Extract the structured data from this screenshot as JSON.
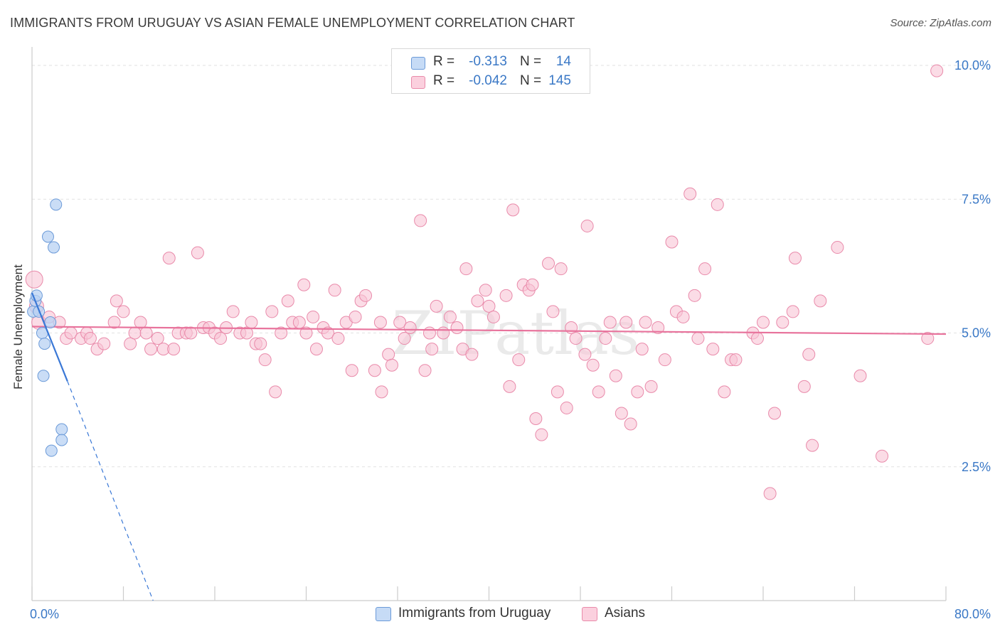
{
  "header": {
    "title": "IMMIGRANTS FROM URUGUAY VS ASIAN FEMALE UNEMPLOYMENT CORRELATION CHART",
    "source": "Source: ZipAtlas.com"
  },
  "watermark": "ZIPatlas",
  "legend": {
    "rows": [
      {
        "r_label": "R =",
        "r_value": "-0.313",
        "n_label": "N =",
        "n_value": "14",
        "color": "#a9c8f0"
      },
      {
        "r_label": "R =",
        "r_value": "-0.042",
        "n_label": "N =",
        "n_value": "145",
        "color": "#f7b6cc"
      }
    ]
  },
  "colors": {
    "blue_fill": "#b8d2f3",
    "blue_stroke": "#6b9ad8",
    "blue_line": "#3a78d6",
    "pink_fill": "#f8c4d6",
    "pink_stroke": "#e98aaa",
    "pink_line": "#e8739c",
    "axis_text": "#3a78c6",
    "grid": "#e2e2e2"
  },
  "chart_data": {
    "type": "scatter",
    "ylabel": "Female Unemployment",
    "xlim": [
      0,
      80
    ],
    "ylim": [
      0,
      10.2
    ],
    "x_tick_labels": [
      {
        "v": 0,
        "label": "0.0%"
      },
      {
        "v": 80,
        "label": "80.0%"
      }
    ],
    "y_tick_labels": [
      {
        "v": 2.5,
        "label": "2.5%"
      },
      {
        "v": 5.0,
        "label": "5.0%"
      },
      {
        "v": 7.5,
        "label": "7.5%"
      },
      {
        "v": 10.0,
        "label": "10.0%"
      }
    ],
    "grid": true,
    "legend_position": "top-center and bottom",
    "series": [
      {
        "name": "Immigrants from Uruguay",
        "color": "#a9c8f0",
        "points": [
          [
            0.1,
            5.4
          ],
          [
            0.3,
            5.6
          ],
          [
            0.4,
            5.7
          ],
          [
            0.6,
            5.4
          ],
          [
            0.9,
            5.0
          ],
          [
            1.1,
            4.8
          ],
          [
            1.0,
            4.2
          ],
          [
            1.4,
            6.8
          ],
          [
            1.9,
            6.6
          ],
          [
            2.1,
            7.4
          ],
          [
            1.6,
            5.2
          ],
          [
            2.6,
            3.2
          ],
          [
            2.6,
            3.0
          ],
          [
            1.7,
            2.8
          ]
        ],
        "trend": {
          "x0": 0,
          "y0": 5.75,
          "x1": 3.1,
          "y1": 4.1,
          "dash_to_x": 10.6,
          "dash_to_y": 0
        }
      },
      {
        "name": "Asians",
        "color": "#f7b6cc",
        "points": [
          [
            0.2,
            6.0
          ],
          [
            0.4,
            5.5
          ],
          [
            0.6,
            5.2
          ],
          [
            1.5,
            5.3
          ],
          [
            2.4,
            5.2
          ],
          [
            3.0,
            4.9
          ],
          [
            3.4,
            5.0
          ],
          [
            4.3,
            4.9
          ],
          [
            4.8,
            5.0
          ],
          [
            5.1,
            4.9
          ],
          [
            5.7,
            4.7
          ],
          [
            6.3,
            4.8
          ],
          [
            7.2,
            5.2
          ],
          [
            7.4,
            5.6
          ],
          [
            8.0,
            5.4
          ],
          [
            8.6,
            4.8
          ],
          [
            9.0,
            5.0
          ],
          [
            9.5,
            5.2
          ],
          [
            10.0,
            5.0
          ],
          [
            10.4,
            4.7
          ],
          [
            11.0,
            4.9
          ],
          [
            11.5,
            4.7
          ],
          [
            12.0,
            6.4
          ],
          [
            12.4,
            4.7
          ],
          [
            12.8,
            5.0
          ],
          [
            13.5,
            5.0
          ],
          [
            13.9,
            5.0
          ],
          [
            14.5,
            6.5
          ],
          [
            15.0,
            5.1
          ],
          [
            15.5,
            5.1
          ],
          [
            16.0,
            5.0
          ],
          [
            16.5,
            4.9
          ],
          [
            17.0,
            5.1
          ],
          [
            17.6,
            5.4
          ],
          [
            18.2,
            5.0
          ],
          [
            18.8,
            5.0
          ],
          [
            19.2,
            5.2
          ],
          [
            19.6,
            4.8
          ],
          [
            20.0,
            4.8
          ],
          [
            20.4,
            4.5
          ],
          [
            21.0,
            5.4
          ],
          [
            21.3,
            3.9
          ],
          [
            21.8,
            5.0
          ],
          [
            22.4,
            5.6
          ],
          [
            22.8,
            5.2
          ],
          [
            23.4,
            5.2
          ],
          [
            23.8,
            5.9
          ],
          [
            24.0,
            5.0
          ],
          [
            24.6,
            5.3
          ],
          [
            24.9,
            4.7
          ],
          [
            25.5,
            5.1
          ],
          [
            25.9,
            5.0
          ],
          [
            26.5,
            5.8
          ],
          [
            26.8,
            4.9
          ],
          [
            27.5,
            5.2
          ],
          [
            28.0,
            4.3
          ],
          [
            28.3,
            5.3
          ],
          [
            28.8,
            5.6
          ],
          [
            29.2,
            5.7
          ],
          [
            30.0,
            4.3
          ],
          [
            30.5,
            5.2
          ],
          [
            30.6,
            3.9
          ],
          [
            31.2,
            4.6
          ],
          [
            31.5,
            4.4
          ],
          [
            32.2,
            5.2
          ],
          [
            32.6,
            4.9
          ],
          [
            33.1,
            5.1
          ],
          [
            34.0,
            7.1
          ],
          [
            34.4,
            4.3
          ],
          [
            34.8,
            5.0
          ],
          [
            35.0,
            4.7
          ],
          [
            35.4,
            5.5
          ],
          [
            36.0,
            5.0
          ],
          [
            36.6,
            5.3
          ],
          [
            37.2,
            5.1
          ],
          [
            37.7,
            4.7
          ],
          [
            38.0,
            6.2
          ],
          [
            38.5,
            4.6
          ],
          [
            39.0,
            5.6
          ],
          [
            40.0,
            5.5
          ],
          [
            39.7,
            5.8
          ],
          [
            40.4,
            5.3
          ],
          [
            41.5,
            5.7
          ],
          [
            41.8,
            4.0
          ],
          [
            42.1,
            7.3
          ],
          [
            42.6,
            4.5
          ],
          [
            43.0,
            5.9
          ],
          [
            43.5,
            5.8
          ],
          [
            43.8,
            5.9
          ],
          [
            44.1,
            3.4
          ],
          [
            44.6,
            3.1
          ],
          [
            45.2,
            6.3
          ],
          [
            45.6,
            5.4
          ],
          [
            46.0,
            3.9
          ],
          [
            46.3,
            6.2
          ],
          [
            46.8,
            3.6
          ],
          [
            47.2,
            5.1
          ],
          [
            47.6,
            4.9
          ],
          [
            48.4,
            4.6
          ],
          [
            48.6,
            7.0
          ],
          [
            49.1,
            4.4
          ],
          [
            49.6,
            3.9
          ],
          [
            50.2,
            4.9
          ],
          [
            50.6,
            5.2
          ],
          [
            51.1,
            4.2
          ],
          [
            51.6,
            3.5
          ],
          [
            52.0,
            5.2
          ],
          [
            52.4,
            3.3
          ],
          [
            53.0,
            3.9
          ],
          [
            53.4,
            4.7
          ],
          [
            53.7,
            5.2
          ],
          [
            54.2,
            4.0
          ],
          [
            54.8,
            5.1
          ],
          [
            55.4,
            4.5
          ],
          [
            56.0,
            6.7
          ],
          [
            56.4,
            5.4
          ],
          [
            57.0,
            5.3
          ],
          [
            57.6,
            7.6
          ],
          [
            58.0,
            5.7
          ],
          [
            58.3,
            4.9
          ],
          [
            58.9,
            6.2
          ],
          [
            59.6,
            4.7
          ],
          [
            60.0,
            7.4
          ],
          [
            60.6,
            3.9
          ],
          [
            61.2,
            4.5
          ],
          [
            61.6,
            4.5
          ],
          [
            63.1,
            5.0
          ],
          [
            63.5,
            4.9
          ],
          [
            64.0,
            5.2
          ],
          [
            64.6,
            2.0
          ],
          [
            65.0,
            3.5
          ],
          [
            65.7,
            5.2
          ],
          [
            66.6,
            5.4
          ],
          [
            66.8,
            6.4
          ],
          [
            67.6,
            4.0
          ],
          [
            68.0,
            4.6
          ],
          [
            68.3,
            2.9
          ],
          [
            69.0,
            5.6
          ],
          [
            70.5,
            6.6
          ],
          [
            72.5,
            4.2
          ],
          [
            74.4,
            2.7
          ],
          [
            78.4,
            4.9
          ],
          [
            79.2,
            9.9
          ]
        ],
        "trend": {
          "x0": 0,
          "y0": 5.12,
          "x1": 80,
          "y1": 4.98
        }
      }
    ]
  }
}
